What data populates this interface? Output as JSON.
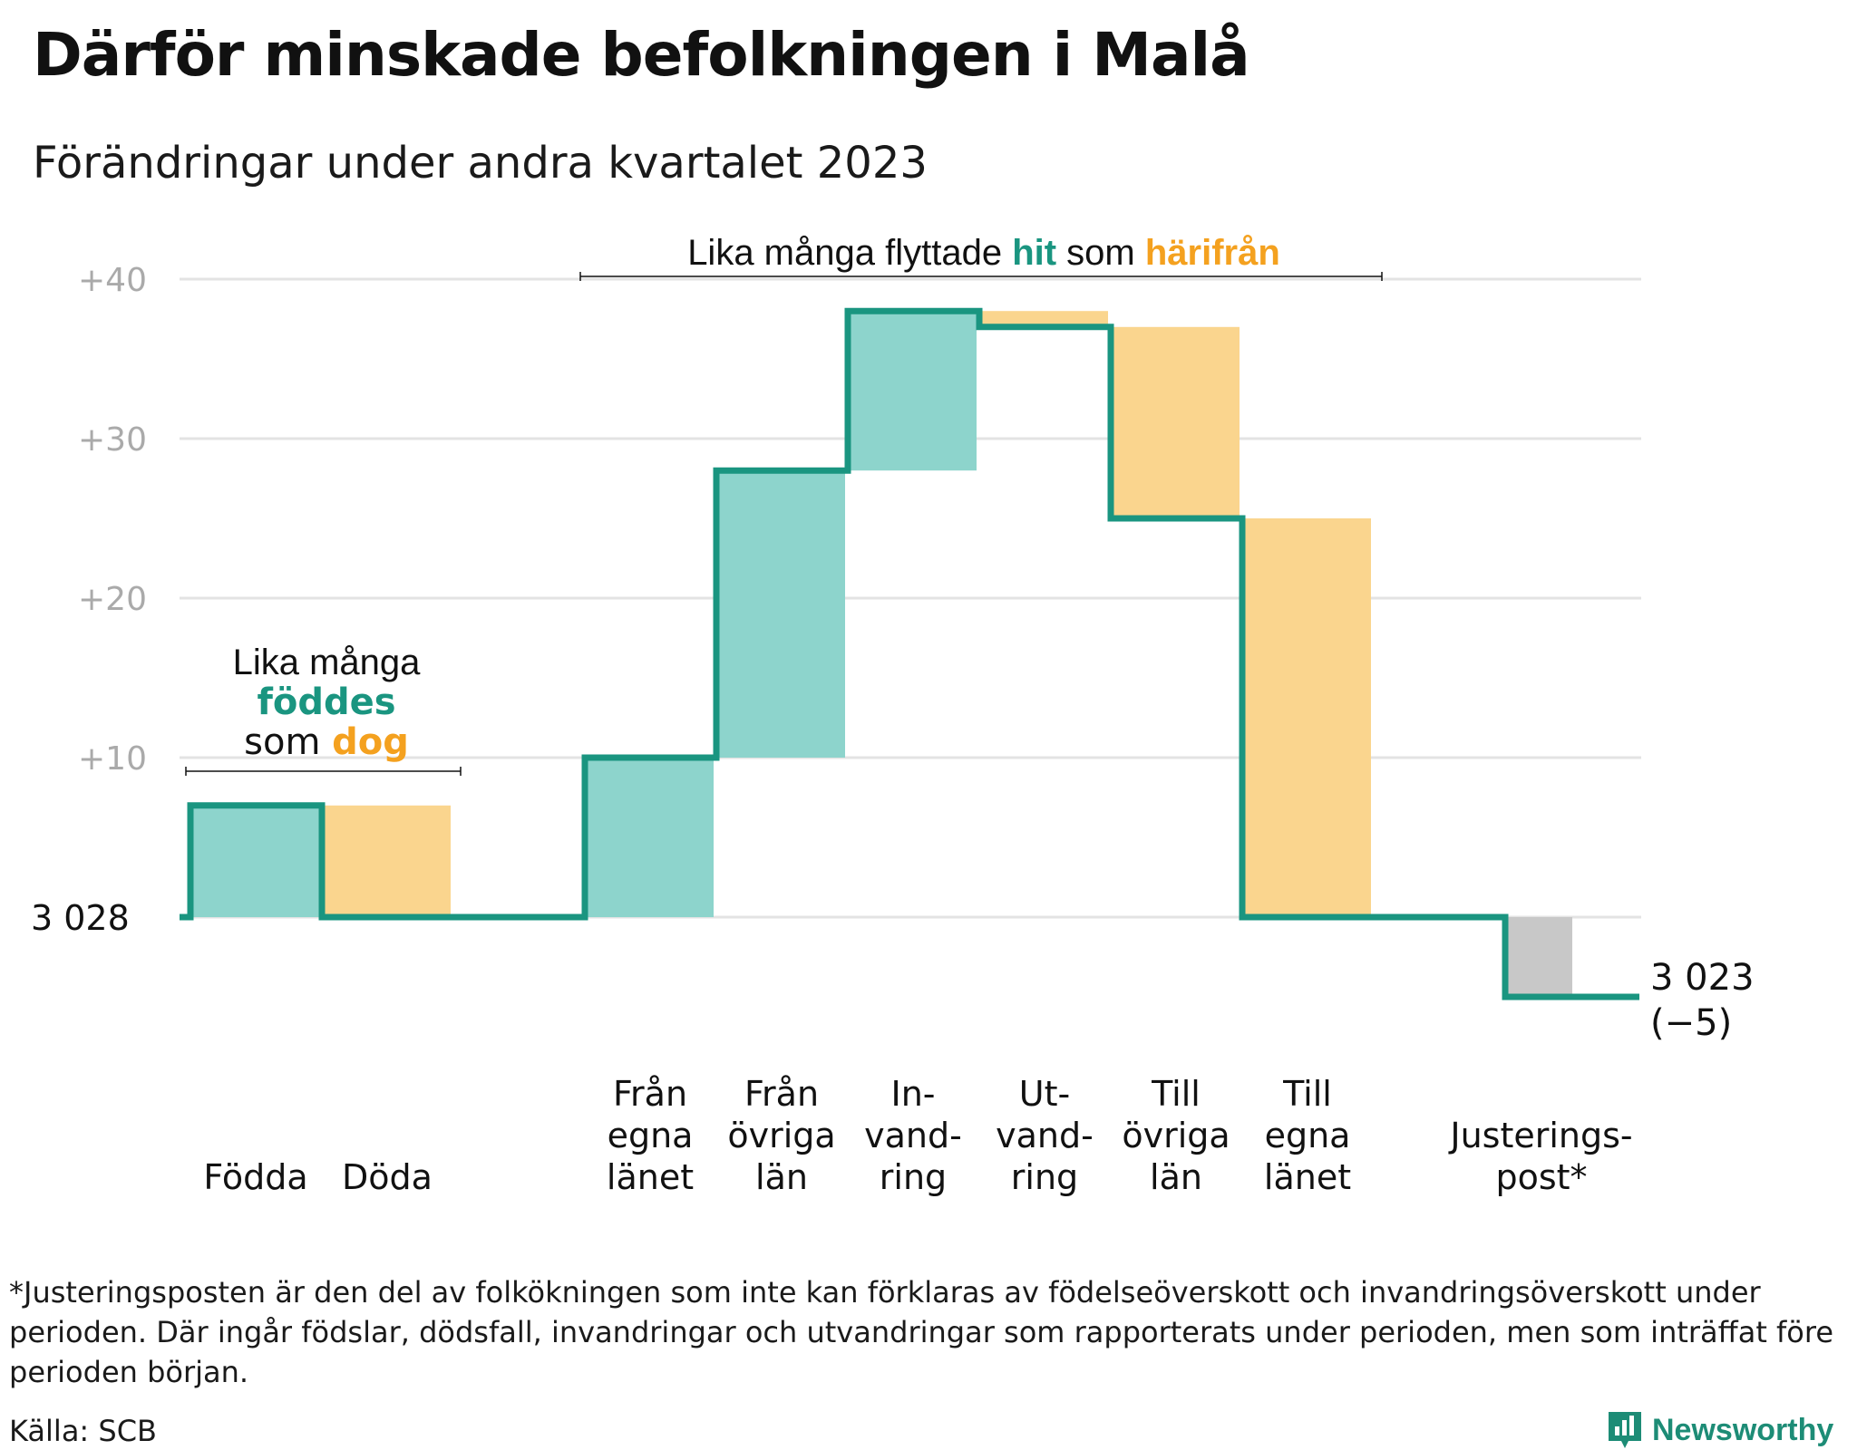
{
  "title": "Därför minskade befolkningen i Malå",
  "subtitle": "Förändringar under andra kvartalet 2023",
  "footnote": "*Justeringsposten är den del av folkökningen som inte kan förklaras av födelseöverskott och invandringsöverskott under perioden. Där ingår födslar, dödsfall, invandringar och utvandringar som rapporterats under perioden, men som inträffat före perioden början.",
  "source": "Källa: SCB",
  "brand": "Newsworthy",
  "colors": {
    "increase_fill": "#8dd4cc",
    "decrease_fill": "#fad58e",
    "adjustment_fill": "#c8c8c8",
    "step_line": "#1a9580",
    "teal_text": "#1a9580",
    "orange_text": "#f4a11f",
    "grid": "#e3e3e3",
    "tick": "#aaaaaa"
  },
  "chart_data": {
    "type": "waterfall",
    "start_value": 3028,
    "start_label": "3  028",
    "end_value": 3023,
    "end_label": "3 023",
    "end_change_label": "(−5)",
    "y_ticks": [
      "+10",
      "+20",
      "+30",
      "+40"
    ],
    "ylim": [
      -7,
      42
    ],
    "grid": true,
    "categories": [
      {
        "label": [
          "Födda"
        ],
        "change": 7,
        "kind": "increase"
      },
      {
        "label": [
          "Döda"
        ],
        "change": -7,
        "kind": "decrease"
      },
      {
        "label": [],
        "change": 0,
        "kind": "gap"
      },
      {
        "label": [
          "Från",
          "egna",
          "länet"
        ],
        "change": 10,
        "kind": "increase"
      },
      {
        "label": [
          "Från",
          "övriga",
          "län"
        ],
        "change": 18,
        "kind": "increase"
      },
      {
        "label": [
          "In-",
          "vand-",
          "ring"
        ],
        "change": 10,
        "kind": "increase"
      },
      {
        "label": [
          "Ut-",
          "vand-",
          "ring"
        ],
        "change": -1,
        "kind": "decrease"
      },
      {
        "label": [
          "Till",
          "övriga",
          "län"
        ],
        "change": -12,
        "kind": "decrease"
      },
      {
        "label": [
          "Till",
          "egna",
          "länet"
        ],
        "change": -25,
        "kind": "decrease"
      },
      {
        "label": [],
        "change": 0,
        "kind": "gap"
      },
      {
        "label": [
          "Justerings-",
          "post*"
        ],
        "change": -5,
        "kind": "adjustment"
      }
    ],
    "annotations": {
      "births": {
        "line1": "Lika många",
        "line2": "föddes",
        "line3_pre": "som",
        "line3_em": "dog"
      },
      "migration": {
        "pre": "Lika många flyttade",
        "em1": "hit",
        "mid": "som",
        "em2": "härifrån"
      }
    }
  }
}
